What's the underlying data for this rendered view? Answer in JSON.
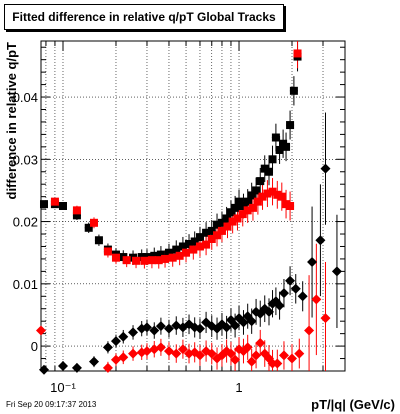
{
  "chart_data": {
    "type": "scatter",
    "title": "Fitted difference in relative q/pT  Global Tracks",
    "xlabel": "pT/|q| (GeV/c)",
    "ylabel": "difference in relative q/pT",
    "xscale": "log",
    "xlim": [
      0.075,
      4.0
    ],
    "ylim": [
      -0.004,
      0.049
    ],
    "x_ticks": [
      {
        "value": 0.1,
        "label": "10⁻¹"
      },
      {
        "value": 1,
        "label": "1"
      }
    ],
    "y_ticks": [
      {
        "value": 0,
        "label": "0"
      },
      {
        "value": 0.01,
        "label": "0.01"
      },
      {
        "value": 0.02,
        "label": "0.02"
      },
      {
        "value": 0.03,
        "label": "0.03"
      },
      {
        "value": 0.04,
        "label": "0.04"
      }
    ],
    "grid": true,
    "series": [
      {
        "marker": "square",
        "color": "#000000",
        "x": [
          0.078,
          0.09,
          0.1,
          0.12,
          0.14,
          0.16,
          0.18,
          0.2,
          0.22,
          0.25,
          0.28,
          0.3,
          0.33,
          0.36,
          0.4,
          0.44,
          0.48,
          0.52,
          0.56,
          0.6,
          0.65,
          0.7,
          0.75,
          0.8,
          0.85,
          0.9,
          0.95,
          1.0,
          1.06,
          1.12,
          1.18,
          1.25,
          1.32,
          1.4,
          1.48,
          1.55,
          1.62,
          1.7,
          1.78,
          1.85,
          1.95,
          2.05,
          2.15
        ],
        "y": [
          0.0228,
          0.0228,
          0.0225,
          0.021,
          0.019,
          0.017,
          0.0155,
          0.0147,
          0.0143,
          0.0142,
          0.0143,
          0.0143,
          0.0145,
          0.0147,
          0.015,
          0.0155,
          0.016,
          0.0164,
          0.0168,
          0.0175,
          0.0182,
          0.0185,
          0.0195,
          0.0198,
          0.0205,
          0.0215,
          0.0222,
          0.0232,
          0.0225,
          0.0232,
          0.0242,
          0.025,
          0.0265,
          0.0285,
          0.028,
          0.03,
          0.0335,
          0.0315,
          0.0325,
          0.032,
          0.0355,
          0.041,
          0.0465
        ]
      },
      {
        "marker": "square",
        "color": "#ff0000",
        "x": [
          0.09,
          0.12,
          0.15,
          0.18,
          0.2,
          0.23,
          0.26,
          0.29,
          0.32,
          0.35,
          0.38,
          0.42,
          0.46,
          0.5,
          0.55,
          0.6,
          0.65,
          0.7,
          0.75,
          0.8,
          0.86,
          0.92,
          0.98,
          1.05,
          1.12,
          1.2,
          1.28,
          1.36,
          1.45,
          1.55,
          1.65,
          1.75,
          1.85,
          1.95,
          2.15
        ],
        "y": [
          0.0232,
          0.0218,
          0.0198,
          0.0152,
          0.0142,
          0.0138,
          0.0137,
          0.0137,
          0.0138,
          0.0138,
          0.014,
          0.0142,
          0.0145,
          0.015,
          0.0155,
          0.016,
          0.0163,
          0.0172,
          0.0178,
          0.0185,
          0.0192,
          0.02,
          0.0205,
          0.0212,
          0.0218,
          0.0222,
          0.0232,
          0.024,
          0.0245,
          0.0248,
          0.0243,
          0.024,
          0.0228,
          0.0225,
          0.047
        ]
      },
      {
        "marker": "diamond",
        "color": "#000000",
        "x": [
          0.078,
          0.1,
          0.12,
          0.15,
          0.18,
          0.2,
          0.22,
          0.25,
          0.28,
          0.3,
          0.33,
          0.36,
          0.4,
          0.44,
          0.48,
          0.52,
          0.56,
          0.6,
          0.65,
          0.7,
          0.75,
          0.8,
          0.85,
          0.9,
          0.95,
          1.0,
          1.06,
          1.12,
          1.18,
          1.25,
          1.32,
          1.4,
          1.48,
          1.55,
          1.62,
          1.7,
          1.8,
          1.95,
          2.1,
          2.3,
          2.6,
          2.9,
          3.1,
          3.6
        ],
        "y": [
          -0.0038,
          -0.0032,
          -0.0035,
          -0.0025,
          -0.0002,
          0.0008,
          0.0015,
          0.0022,
          0.0028,
          0.003,
          0.0025,
          0.0032,
          0.0028,
          0.0033,
          0.003,
          0.0035,
          0.003,
          0.0028,
          0.0038,
          0.0032,
          0.0028,
          0.0035,
          0.003,
          0.0042,
          0.0033,
          0.0045,
          0.0038,
          0.0048,
          0.004,
          0.0055,
          0.0052,
          0.006,
          0.0055,
          0.0068,
          0.0072,
          0.0065,
          0.0085,
          0.0105,
          0.0092,
          0.008,
          0.0135,
          0.017,
          0.0285,
          0.012
        ]
      },
      {
        "marker": "diamond",
        "color": "#ff0000",
        "x": [
          0.075,
          0.18,
          0.2,
          0.22,
          0.25,
          0.28,
          0.3,
          0.33,
          0.36,
          0.4,
          0.44,
          0.48,
          0.52,
          0.56,
          0.6,
          0.65,
          0.7,
          0.75,
          0.8,
          0.85,
          0.9,
          0.95,
          1.0,
          1.06,
          1.12,
          1.18,
          1.25,
          1.32,
          1.4,
          1.48,
          1.55,
          1.65,
          1.8,
          2.0,
          2.2,
          2.5,
          2.75,
          3.1
        ],
        "y": [
          0.0025,
          -0.0035,
          -0.0022,
          -0.0018,
          -0.0012,
          -0.001,
          -0.0008,
          -0.0005,
          -0.0002,
          -0.0008,
          -0.0012,
          -0.0005,
          -0.0012,
          -0.001,
          -0.0015,
          -0.0008,
          -0.0012,
          -0.002,
          -0.0015,
          -0.0008,
          -0.0012,
          -0.0022,
          -0.0005,
          -0.0008,
          -0.0002,
          -0.0025,
          -0.0015,
          0.0005,
          -0.0012,
          -0.002,
          -0.0028,
          -0.0028,
          -0.0015,
          -0.002,
          -0.0012,
          0.0025,
          0.0075,
          0.0045
        ]
      }
    ]
  },
  "footer": {
    "timestamp": "Fri Sep 20 09:17:37 2013"
  }
}
